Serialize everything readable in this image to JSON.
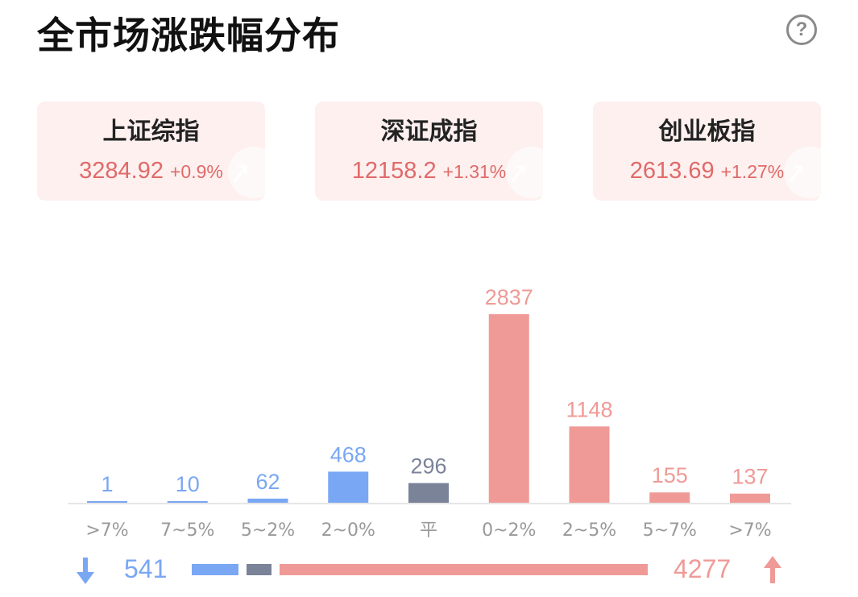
{
  "header": {
    "title": "全市场涨跌幅分布",
    "help_glyph": "?"
  },
  "indices": [
    {
      "name": "上证综指",
      "value": "3284.92",
      "change": "+0.9%"
    },
    {
      "name": "深证成指",
      "value": "12158.2",
      "change": "+1.31%"
    },
    {
      "name": "创业板指",
      "value": "2613.69",
      "change": "+1.27%"
    }
  ],
  "chart_data": {
    "type": "bar",
    "categories": [
      ">7%",
      "7~5%",
      "5~2%",
      "2~0%",
      "平",
      "0~2%",
      "2~5%",
      "5~7%",
      ">7%"
    ],
    "values": [
      1,
      10,
      62,
      468,
      296,
      2837,
      1148,
      155,
      137
    ],
    "groups": [
      "down",
      "down",
      "down",
      "down",
      "flat",
      "up",
      "up",
      "up",
      "up"
    ],
    "title": "全市场涨跌幅分布",
    "xlabel": "",
    "ylabel": "",
    "ylim": [
      0,
      2837
    ],
    "grid": false,
    "legend": "none",
    "colors": {
      "down": "#7aa7f4",
      "flat": "#7b8399",
      "up": "#ef9a96",
      "axis": "#e6e6e6",
      "tick": "#999999"
    }
  },
  "summary": {
    "down_count": "541",
    "flat_count": 296,
    "up_count": "4277",
    "down_icon": "arrow-down-icon",
    "up_icon": "arrow-up-icon"
  }
}
